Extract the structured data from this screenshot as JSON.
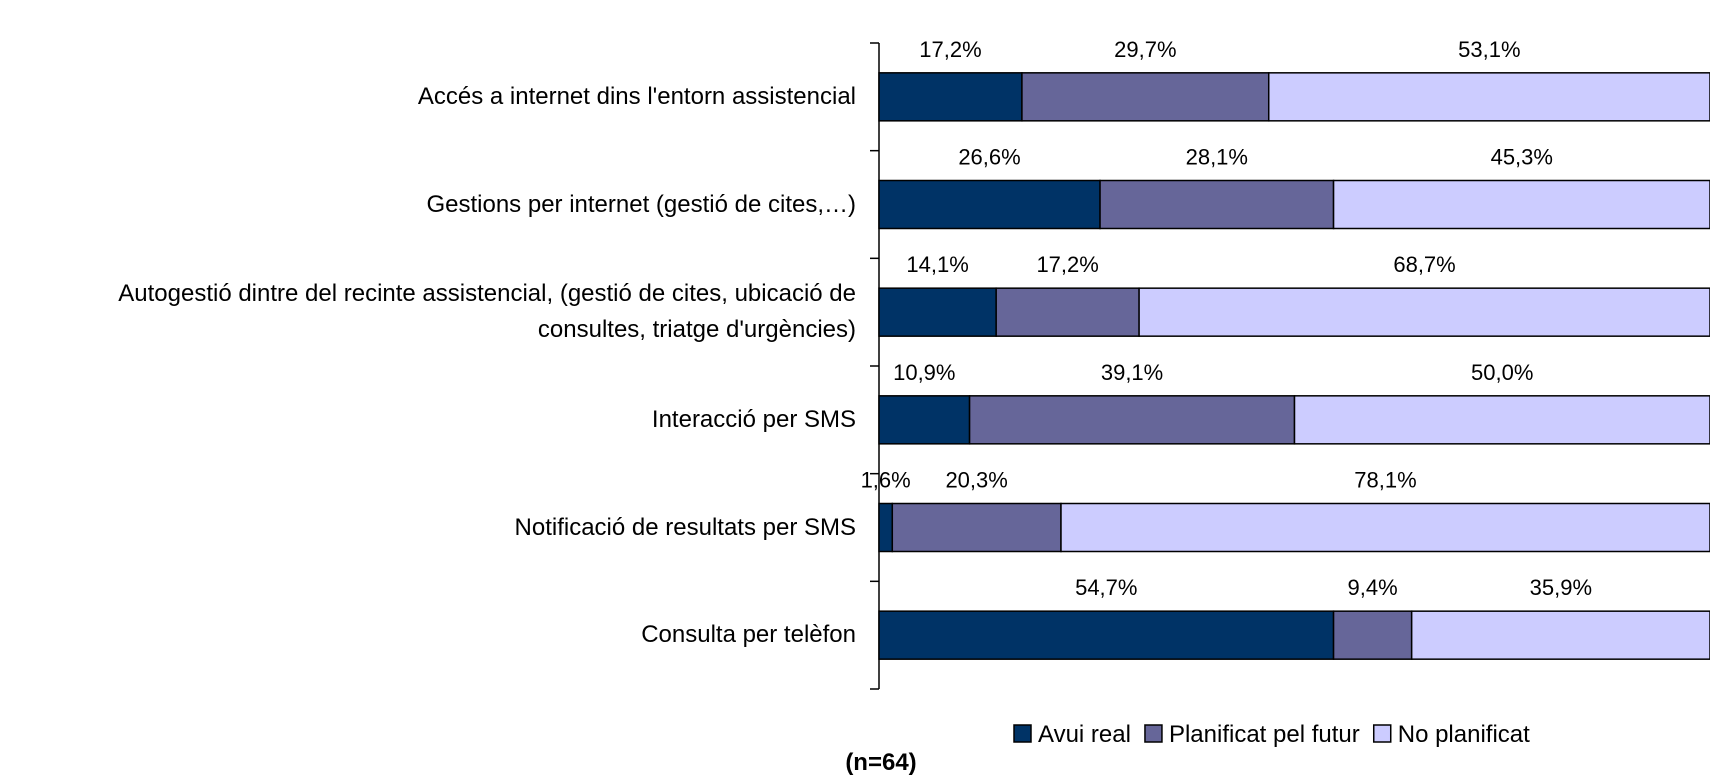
{
  "chart_data": {
    "type": "stacked_bar_horizontal_percent",
    "categories": [
      "Accés a internet dins l'entorn assistencial",
      "Gestions per internet (gestió de cites,…)",
      "Autogestió dintre del recinte assistencial, (gestió de cites, ubicació de consultes, triatge d'urgències)",
      "Interacció per SMS",
      "Notificació de resultats per SMS",
      "Consulta per telèfon"
    ],
    "series": [
      {
        "name": "Avui real",
        "color": "#003366",
        "values": [
          17.2,
          26.6,
          14.1,
          10.9,
          1.6,
          54.7
        ],
        "value_labels": [
          "17,2%",
          "26,6%",
          "14,1%",
          "10,9%",
          "1,6%",
          "54,7%"
        ]
      },
      {
        "name": "Planificat pel futur",
        "color": "#666699",
        "values": [
          29.7,
          28.1,
          17.2,
          39.1,
          20.3,
          9.4
        ],
        "value_labels": [
          "29,7%",
          "28,1%",
          "17,2%",
          "39,1%",
          "20,3%",
          "9,4%"
        ]
      },
      {
        "name": "No planificat",
        "color": "#ccccff",
        "values": [
          53.1,
          45.3,
          68.7,
          50.0,
          78.1,
          35.9
        ],
        "value_labels": [
          "53,1%",
          "45,3%",
          "68,7%",
          "50,0%",
          "78,1%",
          "35,9%"
        ]
      }
    ],
    "xlim": [
      0,
      100
    ],
    "note": "(n=64)",
    "legend": "bottom"
  }
}
